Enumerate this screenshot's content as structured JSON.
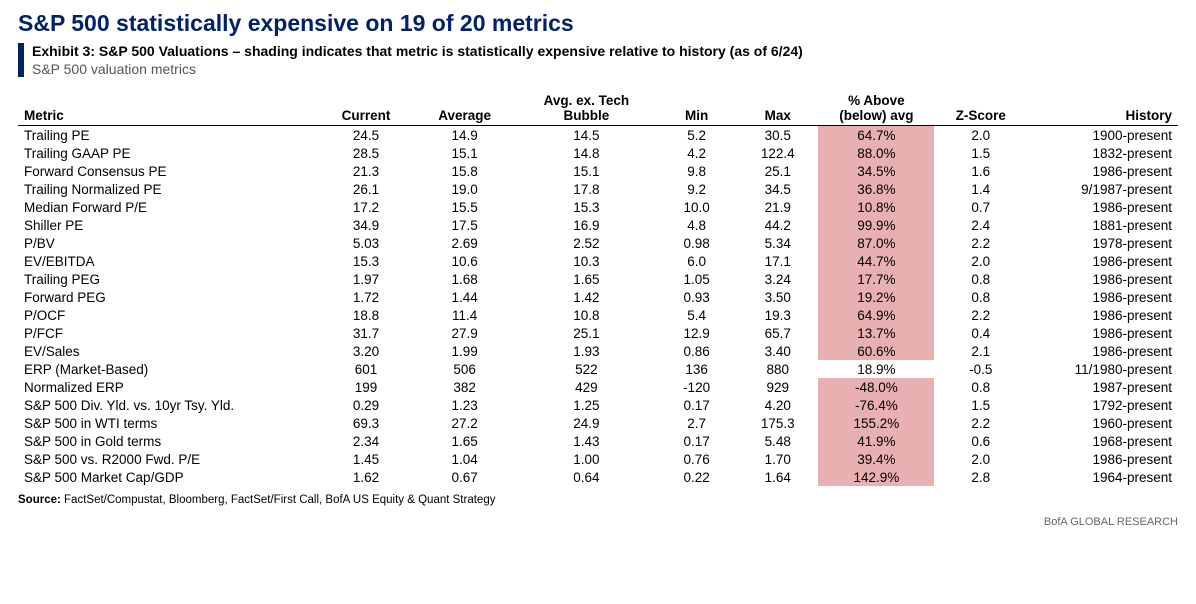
{
  "title": "S&P 500 statistically expensive on 19 of 20 metrics",
  "exhibit_label": "Exhibit 3:",
  "exhibit_text": "S&P 500 Valuations – shading indicates that metric is statistically expensive relative to history (as of 6/24)",
  "subtitle": "S&P 500 valuation metrics",
  "columns": {
    "metric": "Metric",
    "current": "Current",
    "average": "Average",
    "avg_ex_tech_l1": "Avg. ex. Tech",
    "avg_ex_tech_l2": "Bubble",
    "min": "Min",
    "max": "Max",
    "pct_above_l1": "% Above",
    "pct_above_l2": "(below) avg",
    "zscore": "Z-Score",
    "history": "History"
  },
  "shade_color": "#e8b0b0",
  "rows": [
    {
      "metric": "Trailing PE",
      "current": "24.5",
      "average": "14.9",
      "bubble": "14.5",
      "min": "5.2",
      "max": "30.5",
      "above": "64.7%",
      "above_shaded": true,
      "zscore": "2.0",
      "history": "1900-present"
    },
    {
      "metric": "Trailing GAAP PE",
      "current": "28.5",
      "average": "15.1",
      "bubble": "14.8",
      "min": "4.2",
      "max": "122.4",
      "above": "88.0%",
      "above_shaded": true,
      "zscore": "1.5",
      "history": "1832-present"
    },
    {
      "metric": "Forward Consensus PE",
      "current": "21.3",
      "average": "15.8",
      "bubble": "15.1",
      "min": "9.8",
      "max": "25.1",
      "above": "34.5%",
      "above_shaded": true,
      "zscore": "1.6",
      "history": "1986-present"
    },
    {
      "metric": "Trailing Normalized PE",
      "current": "26.1",
      "average": "19.0",
      "bubble": "17.8",
      "min": "9.2",
      "max": "34.5",
      "above": "36.8%",
      "above_shaded": true,
      "zscore": "1.4",
      "history": "9/1987-present"
    },
    {
      "metric": "Median Forward P/E",
      "current": "17.2",
      "average": "15.5",
      "bubble": "15.3",
      "min": "10.0",
      "max": "21.9",
      "above": "10.8%",
      "above_shaded": true,
      "zscore": "0.7",
      "history": "1986-present"
    },
    {
      "metric": "Shiller PE",
      "current": "34.9",
      "average": "17.5",
      "bubble": "16.9",
      "min": "4.8",
      "max": "44.2",
      "above": "99.9%",
      "above_shaded": true,
      "zscore": "2.4",
      "history": "1881-present"
    },
    {
      "metric": "P/BV",
      "current": "5.03",
      "average": "2.69",
      "bubble": "2.52",
      "min": "0.98",
      "max": "5.34",
      "above": "87.0%",
      "above_shaded": true,
      "zscore": "2.2",
      "history": "1978-present"
    },
    {
      "metric": "EV/EBITDA",
      "current": "15.3",
      "average": "10.6",
      "bubble": "10.3",
      "min": "6.0",
      "max": "17.1",
      "above": "44.7%",
      "above_shaded": true,
      "zscore": "2.0",
      "history": "1986-present"
    },
    {
      "metric": "Trailing PEG",
      "current": "1.97",
      "average": "1.68",
      "bubble": "1.65",
      "min": "1.05",
      "max": "3.24",
      "above": "17.7%",
      "above_shaded": true,
      "zscore": "0.8",
      "history": "1986-present"
    },
    {
      "metric": "Forward PEG",
      "current": "1.72",
      "average": "1.44",
      "bubble": "1.42",
      "min": "0.93",
      "max": "3.50",
      "above": "19.2%",
      "above_shaded": true,
      "zscore": "0.8",
      "history": "1986-present"
    },
    {
      "metric": "P/OCF",
      "current": "18.8",
      "average": "11.4",
      "bubble": "10.8",
      "min": "5.4",
      "max": "19.3",
      "above": "64.9%",
      "above_shaded": true,
      "zscore": "2.2",
      "history": "1986-present"
    },
    {
      "metric": "P/FCF",
      "current": "31.7",
      "average": "27.9",
      "bubble": "25.1",
      "min": "12.9",
      "max": "65.7",
      "above": "13.7%",
      "above_shaded": true,
      "zscore": "0.4",
      "history": "1986-present"
    },
    {
      "metric": "EV/Sales",
      "current": "3.20",
      "average": "1.99",
      "bubble": "1.93",
      "min": "0.86",
      "max": "3.40",
      "above": "60.6%",
      "above_shaded": true,
      "zscore": "2.1",
      "history": "1986-present"
    },
    {
      "metric": "ERP (Market-Based)",
      "current": "601",
      "average": "506",
      "bubble": "522",
      "min": "136",
      "max": "880",
      "above": "18.9%",
      "above_shaded": false,
      "zscore": "-0.5",
      "history": "11/1980-present"
    },
    {
      "metric": "Normalized ERP",
      "current": "199",
      "average": "382",
      "bubble": "429",
      "min": "-120",
      "max": "929",
      "above": "-48.0%",
      "above_shaded": true,
      "zscore": "0.8",
      "history": "1987-present"
    },
    {
      "metric": "S&P 500 Div. Yld. vs. 10yr Tsy. Yld.",
      "current": "0.29",
      "average": "1.23",
      "bubble": "1.25",
      "min": "0.17",
      "max": "4.20",
      "above": "-76.4%",
      "above_shaded": true,
      "zscore": "1.5",
      "history": "1792-present"
    },
    {
      "metric": "S&P 500 in WTI terms",
      "current": "69.3",
      "average": "27.2",
      "bubble": "24.9",
      "min": "2.7",
      "max": "175.3",
      "above": "155.2%",
      "above_shaded": true,
      "zscore": "2.2",
      "history": "1960-present"
    },
    {
      "metric": "S&P 500 in Gold terms",
      "current": "2.34",
      "average": "1.65",
      "bubble": "1.43",
      "min": "0.17",
      "max": "5.48",
      "above": "41.9%",
      "above_shaded": true,
      "zscore": "0.6",
      "history": "1968-present"
    },
    {
      "metric": "S&P 500 vs. R2000 Fwd. P/E",
      "current": "1.45",
      "average": "1.04",
      "bubble": "1.00",
      "min": "0.76",
      "max": "1.70",
      "above": "39.4%",
      "above_shaded": true,
      "zscore": "2.0",
      "history": "1986-present"
    },
    {
      "metric": "S&P 500 Market Cap/GDP",
      "current": "1.62",
      "average": "0.67",
      "bubble": "0.64",
      "min": "0.22",
      "max": "1.64",
      "above": "142.9%",
      "above_shaded": true,
      "zscore": "2.8",
      "history": "1964-present"
    }
  ],
  "source_label": "Source:",
  "source_text": "FactSet/Compustat, Bloomberg, FactSet/First Call, BofA US Equity & Quant Strategy",
  "footer": "BofA GLOBAL RESEARCH"
}
